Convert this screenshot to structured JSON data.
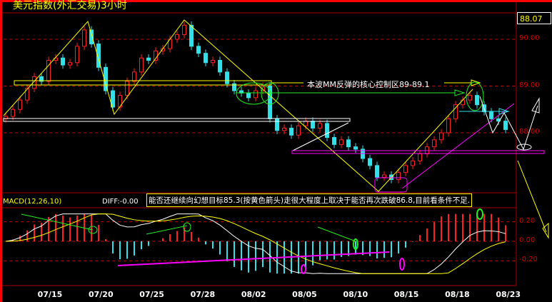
{
  "title": "美元指数(外汇交易)3小时",
  "last_price": "88.07",
  "macd_label": "MACD(12,26,10)",
  "diff_label": "DIFF:-0.00",
  "annotation_note": "能否还继续向幻想目标85.3(按黄色箭头)走很大程度上取决于能否再次跌破86.8,目前看条件不足.",
  "zone_label": "本波MM反弹的核心控制区89-89.1",
  "colors": {
    "up": "#ff2020",
    "down": "#33e0e8",
    "grid": "#cc0000",
    "title": "#ffff00",
    "frame": "#ff0000"
  },
  "chart_data": {
    "type": "candlestick",
    "price_axis": {
      "ticks": [
        "90.00",
        "89.00",
        "88.00"
      ],
      "values": [
        90,
        89,
        88
      ],
      "range": [
        86.85,
        90.5
      ]
    },
    "macd_axis": {
      "ticks": [
        "0.20",
        "0.00",
        "-0.20"
      ],
      "values": [
        0.2,
        0,
        -0.2
      ],
      "range": [
        -0.35,
        0.3
      ]
    },
    "x_ticks": [
      "07/15",
      "07/20",
      "07/25",
      "07/28",
      "08/02",
      "08/05",
      "08/10",
      "08/15",
      "08/18",
      "08/23"
    ],
    "close": [
      88.35,
      88.5,
      88.7,
      88.95,
      89.2,
      89.1,
      89.55,
      89.6,
      89.45,
      89.5,
      89.85,
      90.2,
      89.9,
      89.4,
      88.9,
      88.55,
      88.8,
      89.1,
      89.3,
      89.6,
      89.55,
      89.75,
      89.8,
      90.0,
      90.1,
      90.3,
      89.85,
      89.7,
      89.5,
      89.55,
      89.3,
      89.05,
      88.9,
      88.85,
      88.75,
      88.9,
      89.0,
      88.3,
      88.05,
      88.1,
      87.95,
      88.15,
      88.25,
      88.1,
      88.2,
      87.9,
      87.75,
      87.85,
      87.7,
      87.65,
      87.45,
      87.3,
      87.05,
      87.1,
      87.0,
      87.15,
      87.3,
      87.4,
      87.55,
      87.7,
      87.85,
      88.0,
      88.3,
      88.6,
      88.7,
      88.8,
      88.6,
      88.45,
      88.3,
      88.25,
      88.07
    ],
    "indicator": "MACD(12,26,10)",
    "grid": true
  }
}
